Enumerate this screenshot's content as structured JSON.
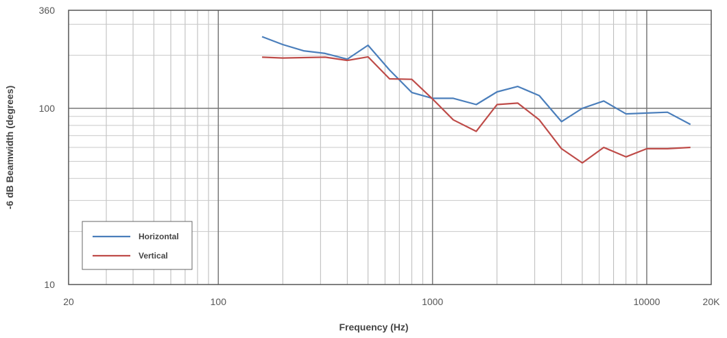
{
  "chart_data": {
    "type": "line",
    "xscale": "log",
    "yscale": "log",
    "xlim": [
      20,
      20000
    ],
    "ylim": [
      10,
      360
    ],
    "grid": true,
    "legend_position": "bottom-left",
    "xlabel": "Frequency (Hz)",
    "ylabel": "-6 dB Beamwidth (degrees)",
    "x_tick_labels": [
      {
        "value": 20,
        "label": "20"
      },
      {
        "value": 100,
        "label": "100"
      },
      {
        "value": 1000,
        "label": "1000"
      },
      {
        "value": 10000,
        "label": "10000"
      },
      {
        "value": 20000,
        "label": "20K"
      }
    ],
    "y_tick_labels": [
      {
        "value": 10,
        "label": "10"
      },
      {
        "value": 100,
        "label": "100"
      },
      {
        "value": 360,
        "label": "360"
      }
    ],
    "x": [
      160,
      200,
      250,
      315,
      400,
      500,
      630,
      800,
      1000,
      1250,
      1600,
      2000,
      2500,
      3150,
      4000,
      5000,
      6300,
      8000,
      10000,
      12500,
      16000
    ],
    "series": [
      {
        "name": "Horizontal",
        "color": "#4a7ebb",
        "values": [
          255,
          230,
          212,
          205,
          190,
          228,
          165,
          123,
          114,
          114,
          105,
          124,
          133,
          118,
          84,
          100,
          110,
          93,
          94,
          95,
          81
        ]
      },
      {
        "name": "Vertical",
        "color": "#be4b48",
        "values": [
          195,
          193,
          194,
          195,
          187,
          196,
          147,
          146,
          113,
          86,
          74,
          105,
          107,
          86,
          59,
          49,
          60,
          53,
          59,
          59,
          60
        ]
      }
    ]
  }
}
